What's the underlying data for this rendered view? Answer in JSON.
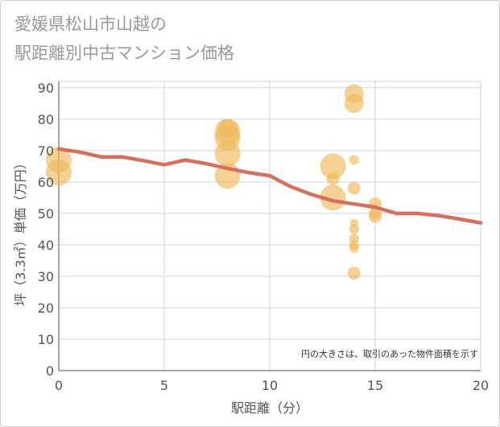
{
  "chart_data": {
    "type": "scatter",
    "title_lines": [
      "愛媛県松山市山越の",
      "駅距離別中古マンション価格"
    ],
    "xlabel": "駅距離（分）",
    "ylabel": "坪（3.3㎡）単価（万円）",
    "note": "円の大きさは、取引のあった物件面積を示す",
    "xlim": [
      0,
      20
    ],
    "ylim": [
      0,
      92
    ],
    "xticks": [
      0,
      5,
      10,
      15,
      20
    ],
    "yticks": [
      0,
      10,
      20,
      30,
      40,
      50,
      60,
      70,
      80,
      90
    ],
    "grid": true,
    "colors": {
      "points": "#f0b95a",
      "line": "#d4705c",
      "grid": "#c9d6e3"
    },
    "points": [
      {
        "x": 0,
        "y": 67,
        "size": 3
      },
      {
        "x": 0,
        "y": 63,
        "size": 3
      },
      {
        "x": 8,
        "y": 76,
        "size": 3
      },
      {
        "x": 8,
        "y": 77,
        "size": 2
      },
      {
        "x": 8,
        "y": 74,
        "size": 3
      },
      {
        "x": 8,
        "y": 69,
        "size": 3
      },
      {
        "x": 8,
        "y": 62,
        "size": 3
      },
      {
        "x": 13,
        "y": 65,
        "size": 3
      },
      {
        "x": 13,
        "y": 61,
        "size": 1
      },
      {
        "x": 13,
        "y": 55,
        "size": 3
      },
      {
        "x": 14,
        "y": 88,
        "size": 2
      },
      {
        "x": 14,
        "y": 85,
        "size": 2
      },
      {
        "x": 14,
        "y": 67,
        "size": 0.5
      },
      {
        "x": 14,
        "y": 58,
        "size": 1
      },
      {
        "x": 14,
        "y": 47,
        "size": 0.3
      },
      {
        "x": 14,
        "y": 45,
        "size": 0.5
      },
      {
        "x": 14,
        "y": 42,
        "size": 0.5
      },
      {
        "x": 14,
        "y": 40,
        "size": 0.5
      },
      {
        "x": 14,
        "y": 39,
        "size": 0.5
      },
      {
        "x": 14,
        "y": 31,
        "size": 1
      },
      {
        "x": 15,
        "y": 53,
        "size": 1
      },
      {
        "x": 15,
        "y": 50,
        "size": 1
      },
      {
        "x": 15,
        "y": 49,
        "size": 1
      }
    ],
    "trend_line": {
      "x": [
        0,
        1,
        2,
        3,
        4,
        5,
        6,
        7,
        8,
        9,
        10,
        11,
        12,
        13,
        14,
        15,
        16,
        17,
        18,
        19,
        20
      ],
      "y": [
        70.5,
        69.5,
        68,
        68,
        66.8,
        65.5,
        67,
        65.8,
        64.3,
        63,
        62,
        58.5,
        56,
        54,
        53,
        52,
        50,
        50,
        49.3,
        48.2,
        47
      ]
    }
  }
}
